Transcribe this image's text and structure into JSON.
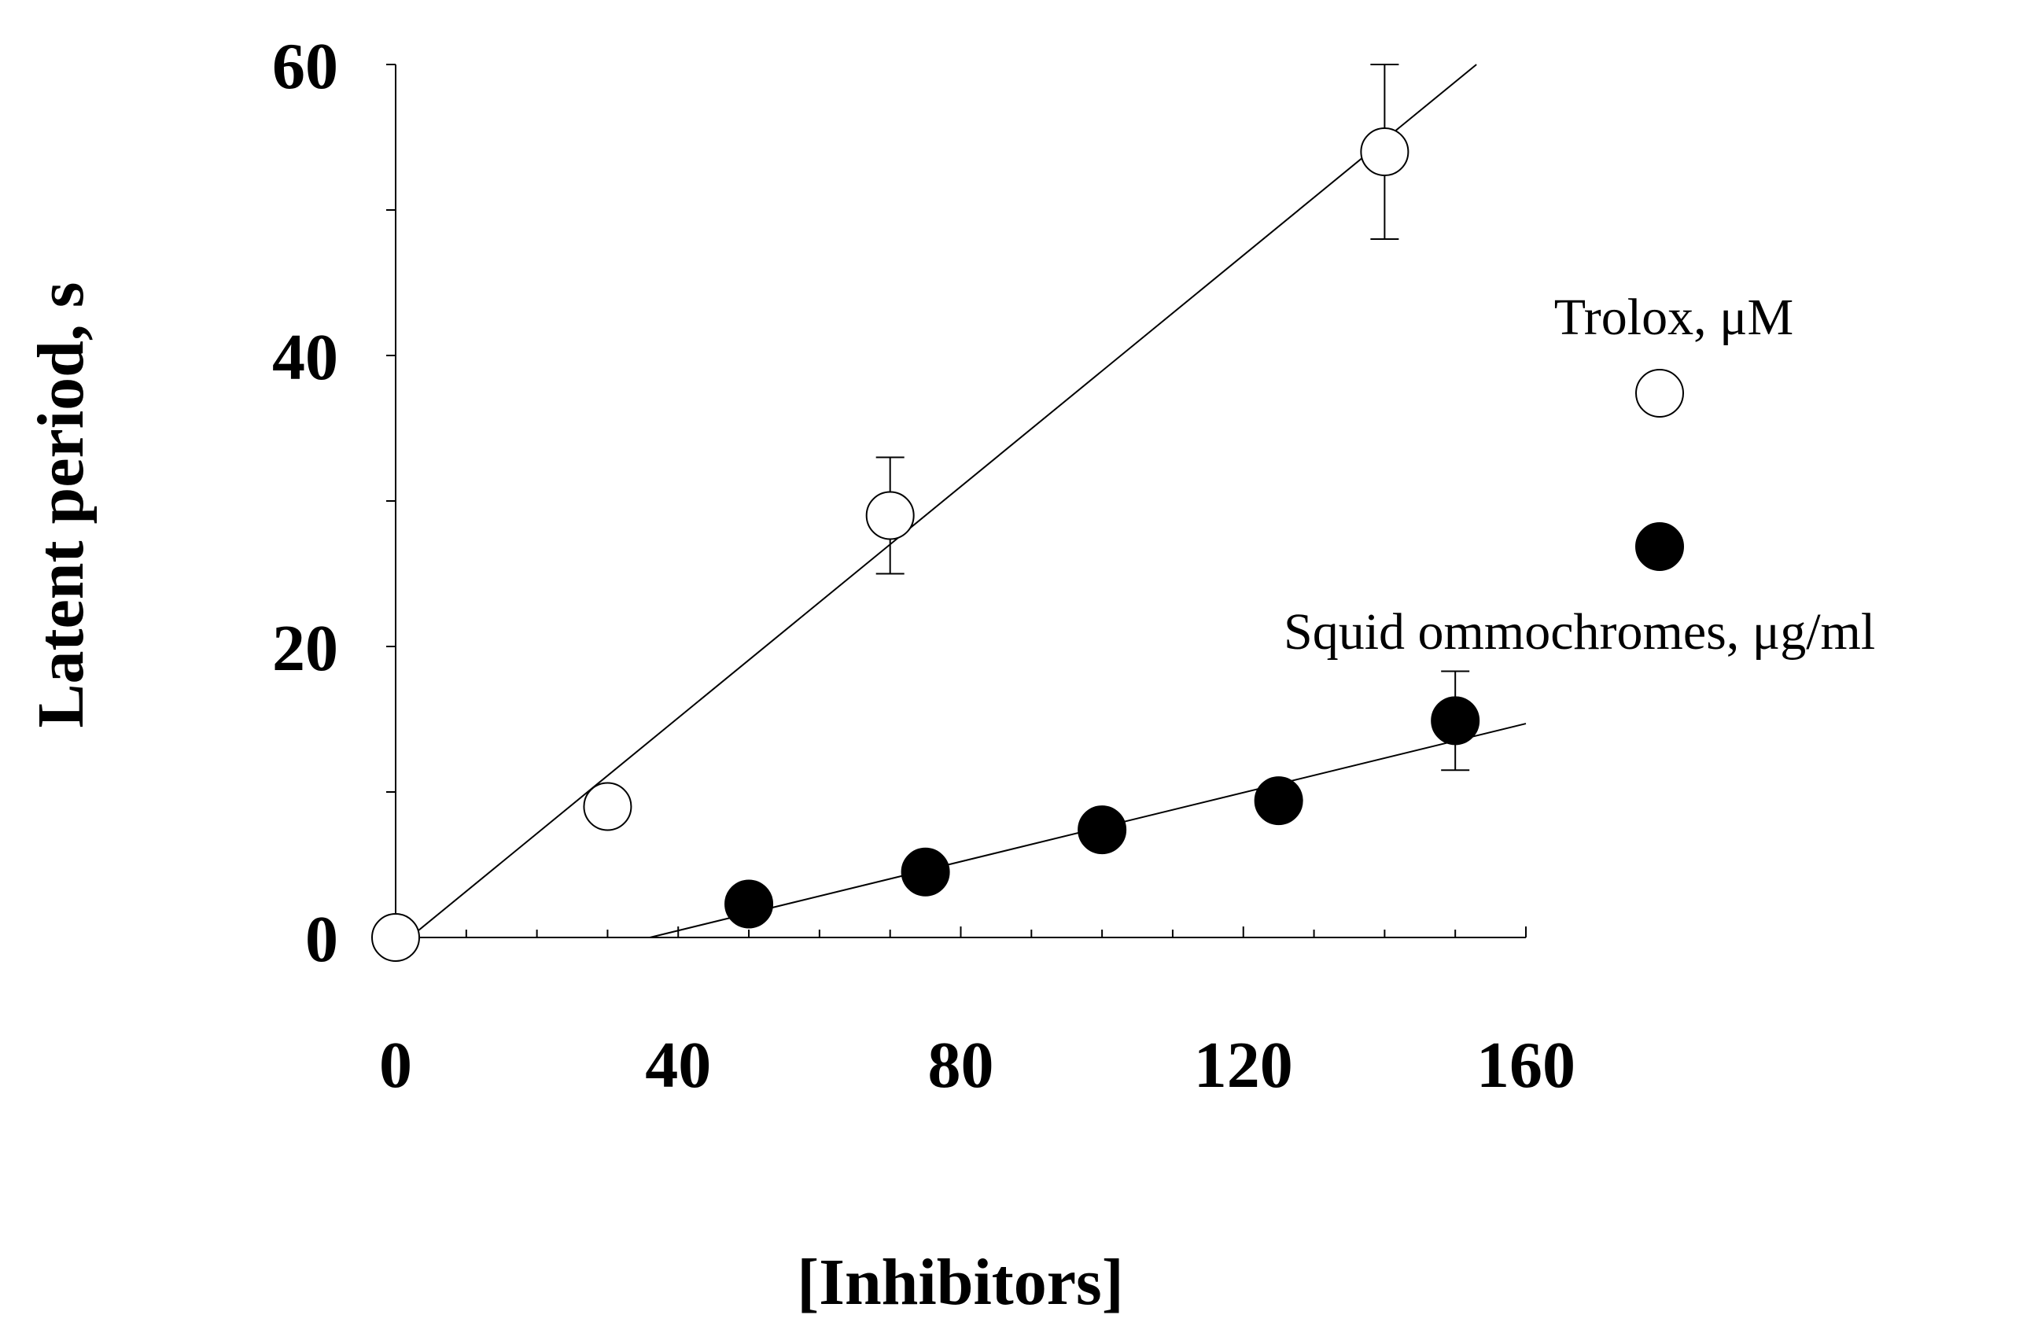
{
  "chart_data": {
    "type": "scatter",
    "title": "",
    "xlabel": "[Inhibitors]",
    "ylabel": "Latent period, s",
    "xlim": [
      0,
      160
    ],
    "ylim": [
      0,
      60
    ],
    "x_ticks": [
      0,
      40,
      80,
      120,
      160
    ],
    "x_tick_labels": [
      "0",
      "40",
      "80",
      "120",
      "160"
    ],
    "y_ticks": [
      0,
      20,
      40,
      60
    ],
    "y_tick_labels": [
      "0",
      "20",
      "40",
      "60"
    ],
    "grid": false,
    "legend_position": "right",
    "series": [
      {
        "name": "Trolox, μM",
        "marker": "open-circle",
        "points": [
          {
            "x": 0,
            "y": 0,
            "err": 0
          },
          {
            "x": 30,
            "y": 9,
            "err": 0
          },
          {
            "x": 70,
            "y": 29,
            "err": 4
          },
          {
            "x": 140,
            "y": 54,
            "err": 6
          }
        ],
        "fit_line": {
          "x": [
            0,
            153
          ],
          "y": [
            -0.8,
            60
          ]
        }
      },
      {
        "name": "Squid ommochromes, μg/ml",
        "marker": "filled-circle",
        "points": [
          {
            "x": 50,
            "y": 2.3,
            "err": 0
          },
          {
            "x": 75,
            "y": 4.5,
            "err": 0
          },
          {
            "x": 100,
            "y": 7.4,
            "err": 0
          },
          {
            "x": 125,
            "y": 9.4,
            "err": 0
          },
          {
            "x": 150,
            "y": 14.9,
            "err": 3.4
          }
        ],
        "fit_line": {
          "x": [
            36,
            160
          ],
          "y": [
            0,
            14.7
          ]
        }
      }
    ]
  }
}
